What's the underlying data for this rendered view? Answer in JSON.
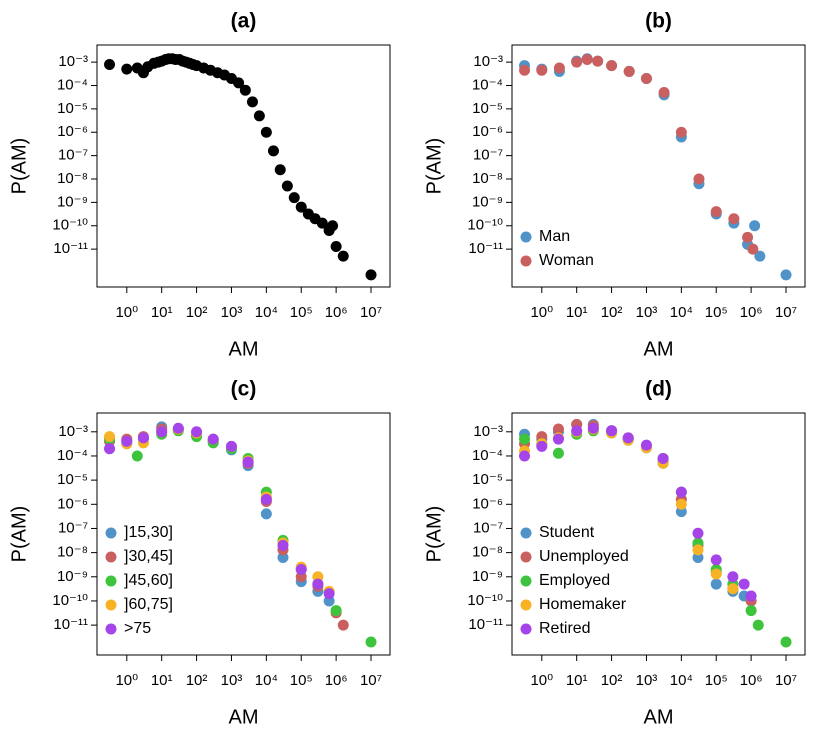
{
  "chart_data": [
    {
      "type": "scatter",
      "title": "(a)",
      "x_label": "AM",
      "y_label": "P(AM)",
      "log_x": true,
      "log_y": true,
      "xlim": [
        0.14,
        35000000
      ],
      "ylim": [
        2.4e-13,
        0.0054
      ],
      "xticks": [
        {
          "value": 1,
          "label": "10⁰"
        },
        {
          "value": 10,
          "label": "10¹"
        },
        {
          "value": 100,
          "label": "10²"
        },
        {
          "value": 1000,
          "label": "10³"
        },
        {
          "value": 10000,
          "label": "10⁴"
        },
        {
          "value": 100000,
          "label": "10⁵"
        },
        {
          "value": 1000000,
          "label": "10⁶"
        },
        {
          "value": 10000000,
          "label": "10⁷"
        }
      ],
      "yticks": [
        {
          "value": 0.001,
          "label": "10⁻³"
        },
        {
          "value": 0.0001,
          "label": "10⁻⁴"
        },
        {
          "value": 1e-05,
          "label": "10⁻⁵"
        },
        {
          "value": 1e-06,
          "label": "10⁻⁶"
        },
        {
          "value": 1e-07,
          "label": "10⁻⁷"
        },
        {
          "value": 1e-08,
          "label": "10⁻⁸"
        },
        {
          "value": 1e-09,
          "label": "10⁻⁹"
        },
        {
          "value": 1e-10,
          "label": "10⁻¹⁰"
        },
        {
          "value": 1e-11,
          "label": "10⁻¹¹"
        }
      ],
      "series": [
        {
          "color": "#000000",
          "x": [
            0.32,
            1,
            2,
            3,
            4,
            6,
            8,
            10,
            13,
            16,
            20,
            25,
            32,
            40,
            50,
            63,
            79,
            100,
            160,
            250,
            400,
            630,
            1000,
            1600,
            2500,
            4000,
            6300,
            10000,
            16000,
            25000,
            40000,
            63000,
            100000,
            160000,
            250000,
            400000,
            630000,
            790000,
            1000000,
            1600000,
            10000000
          ],
          "values": [
            0.00079,
            0.0005,
            0.00056,
            0.00035,
            0.00063,
            0.00089,
            0.001,
            0.0011,
            0.0013,
            0.0014,
            0.0014,
            0.0013,
            0.0013,
            0.0011,
            0.001,
            0.00089,
            0.00079,
            0.00071,
            0.00056,
            0.00045,
            0.00035,
            0.00028,
            0.0002,
            0.00013,
            6.3e-05,
            2e-05,
            5e-06,
            1e-06,
            1.6e-07,
            2.5e-08,
            5e-09,
            1.6e-09,
            6.3e-10,
            3.2e-10,
            2e-10,
            1.3e-10,
            6.3e-11,
            1e-10,
            1.3e-11,
            5e-12,
            7.9e-13
          ]
        }
      ]
    },
    {
      "type": "scatter",
      "title": "(b)",
      "x_label": "AM",
      "y_label": "P(AM)",
      "log_x": true,
      "log_y": true,
      "legend": "bottom left",
      "xlim": [
        0.14,
        35000000
      ],
      "ylim": [
        2.4e-13,
        0.0054
      ],
      "xticks": [
        {
          "value": 1,
          "label": "10⁰"
        },
        {
          "value": 10,
          "label": "10¹"
        },
        {
          "value": 100,
          "label": "10²"
        },
        {
          "value": 1000,
          "label": "10³"
        },
        {
          "value": 10000,
          "label": "10⁴"
        },
        {
          "value": 100000,
          "label": "10⁵"
        },
        {
          "value": 1000000,
          "label": "10⁶"
        },
        {
          "value": 10000000,
          "label": "10⁷"
        }
      ],
      "yticks": [
        {
          "value": 0.001,
          "label": "10⁻³"
        },
        {
          "value": 0.0001,
          "label": "10⁻⁴"
        },
        {
          "value": 1e-05,
          "label": "10⁻⁵"
        },
        {
          "value": 1e-06,
          "label": "10⁻⁶"
        },
        {
          "value": 1e-07,
          "label": "10⁻⁷"
        },
        {
          "value": 1e-08,
          "label": "10⁻⁸"
        },
        {
          "value": 1e-09,
          "label": "10⁻⁹"
        },
        {
          "value": 1e-10,
          "label": "10⁻¹⁰"
        },
        {
          "value": 1e-11,
          "label": "10⁻¹¹"
        }
      ],
      "series": [
        {
          "name": "Man",
          "color": "#4f93c9",
          "x": [
            0.32,
            1,
            3.2,
            10,
            20,
            40,
            100,
            320,
            1000,
            3200,
            10000,
            32000,
            100000,
            320000,
            790000,
            1260000,
            1780000,
            10000000
          ],
          "values": [
            0.00071,
            0.0005,
            0.0004,
            0.0011,
            0.0014,
            0.0011,
            0.00071,
            0.0004,
            0.0002,
            4e-05,
            6.3e-07,
            6.3e-09,
            3.2e-10,
            1.3e-10,
            1.6e-11,
            1e-10,
            5e-12,
            7.9e-13
          ]
        },
        {
          "name": "Woman",
          "color": "#c9605f",
          "x": [
            0.32,
            1,
            3.2,
            10,
            20,
            40,
            100,
            320,
            1000,
            3200,
            10000,
            32000,
            100000,
            320000,
            790000,
            1120000
          ],
          "values": [
            0.00045,
            0.00045,
            0.00056,
            0.001,
            0.0013,
            0.0011,
            0.00071,
            0.0004,
            0.0002,
            5e-05,
            1e-06,
            1e-08,
            4e-10,
            2e-10,
            3.2e-11,
            1e-11
          ]
        }
      ]
    },
    {
      "type": "scatter",
      "title": "(c)",
      "x_label": "AM",
      "y_label": "P(AM)",
      "log_x": true,
      "log_y": true,
      "legend": "bottom left",
      "xlim": [
        0.14,
        35000000
      ],
      "ylim": [
        5.8e-13,
        0.006
      ],
      "xticks": [
        {
          "value": 1,
          "label": "10⁰"
        },
        {
          "value": 10,
          "label": "10¹"
        },
        {
          "value": 100,
          "label": "10²"
        },
        {
          "value": 1000,
          "label": "10³"
        },
        {
          "value": 10000,
          "label": "10⁴"
        },
        {
          "value": 100000,
          "label": "10⁵"
        },
        {
          "value": 1000000,
          "label": "10⁶"
        },
        {
          "value": 10000000,
          "label": "10⁷"
        }
      ],
      "yticks": [
        {
          "value": 0.001,
          "label": "10⁻³"
        },
        {
          "value": 0.0001,
          "label": "10⁻⁴"
        },
        {
          "value": 1e-05,
          "label": "10⁻⁵"
        },
        {
          "value": 1e-06,
          "label": "10⁻⁶"
        },
        {
          "value": 1e-07,
          "label": "10⁻⁷"
        },
        {
          "value": 1e-08,
          "label": "10⁻⁸"
        },
        {
          "value": 1e-09,
          "label": "10⁻⁹"
        },
        {
          "value": 1e-10,
          "label": "10⁻¹⁰"
        },
        {
          "value": 1e-11,
          "label": "10⁻¹¹"
        }
      ],
      "series": [
        {
          "name": "]15,30]",
          "color": "#4f93c9",
          "x": [
            0.32,
            1,
            3,
            10,
            30,
            100,
            300,
            1000,
            3000,
            10000,
            30000,
            100000,
            300000,
            630000
          ],
          "values": [
            0.0005,
            0.0004,
            0.0005,
            0.0016,
            0.0013,
            0.00071,
            0.0004,
            0.00018,
            4e-05,
            4e-07,
            6.3e-09,
            6.3e-10,
            2.5e-10,
            1e-10
          ]
        },
        {
          "name": "]30,45]",
          "color": "#c9605f",
          "x": [
            0.32,
            1,
            3,
            10,
            30,
            100,
            300,
            1000,
            3000,
            10000,
            30000,
            100000,
            300000,
            1000000,
            1600000
          ],
          "values": [
            0.0004,
            0.0005,
            0.00063,
            0.0013,
            0.0013,
            0.00079,
            0.00045,
            0.00022,
            5e-05,
            1.3e-06,
            1.3e-08,
            1e-09,
            4e-10,
            3.2e-11,
            1e-11
          ]
        },
        {
          "name": "]45,60]",
          "color": "#3ec43c",
          "x": [
            0.32,
            1,
            2,
            10,
            30,
            100,
            300,
            1000,
            3000,
            10000,
            30000,
            100000,
            300000,
            1000000,
            10000000
          ],
          "values": [
            0.0005,
            0.00032,
            0.0001,
            0.00079,
            0.0011,
            0.00063,
            0.00035,
            0.0002,
            7.9e-05,
            3.2e-06,
            3.2e-08,
            2e-09,
            5e-10,
            4e-11,
            2e-12
          ]
        },
        {
          "name": "]60,75]",
          "color": "#f7b325",
          "x": [
            0.32,
            1,
            3,
            10,
            30,
            100,
            300,
            1000,
            3000,
            10000,
            30000,
            100000,
            300000,
            630000
          ],
          "values": [
            0.00063,
            0.00032,
            0.00035,
            0.001,
            0.0013,
            0.00089,
            0.0005,
            0.00025,
            6.3e-05,
            2e-06,
            2.5e-08,
            2.5e-09,
            1e-09,
            2.5e-10
          ]
        },
        {
          "name": ">75",
          "color": "#a544e8",
          "x": [
            0.32,
            1,
            3,
            10,
            30,
            100,
            300,
            1000,
            3000,
            10000,
            30000,
            100000,
            300000,
            630000
          ],
          "values": [
            0.0002,
            0.0004,
            0.00056,
            0.001,
            0.0014,
            0.001,
            0.0005,
            0.00025,
            5.6e-05,
            1.6e-06,
            2e-08,
            2e-09,
            5e-10,
            2e-10
          ]
        }
      ]
    },
    {
      "type": "scatter",
      "title": "(d)",
      "x_label": "AM",
      "y_label": "P(AM)",
      "log_x": true,
      "log_y": true,
      "legend": "bottom left",
      "xlim": [
        0.14,
        35000000
      ],
      "ylim": [
        5.8e-13,
        0.006
      ],
      "xticks": [
        {
          "value": 1,
          "label": "10⁰"
        },
        {
          "value": 10,
          "label": "10¹"
        },
        {
          "value": 100,
          "label": "10²"
        },
        {
          "value": 1000,
          "label": "10³"
        },
        {
          "value": 10000,
          "label": "10⁴"
        },
        {
          "value": 100000,
          "label": "10⁵"
        },
        {
          "value": 1000000,
          "label": "10⁶"
        },
        {
          "value": 10000000,
          "label": "10⁷"
        }
      ],
      "yticks": [
        {
          "value": 0.001,
          "label": "10⁻³"
        },
        {
          "value": 0.0001,
          "label": "10⁻⁴"
        },
        {
          "value": 1e-05,
          "label": "10⁻⁵"
        },
        {
          "value": 1e-06,
          "label": "10⁻⁶"
        },
        {
          "value": 1e-07,
          "label": "10⁻⁷"
        },
        {
          "value": 1e-08,
          "label": "10⁻⁸"
        },
        {
          "value": 1e-09,
          "label": "10⁻⁹"
        },
        {
          "value": 1e-10,
          "label": "10⁻¹⁰"
        },
        {
          "value": 1e-11,
          "label": "10⁻¹¹"
        }
      ],
      "series": [
        {
          "name": "Student",
          "color": "#4f93c9",
          "x": [
            0.32,
            1,
            3,
            10,
            30,
            100,
            300,
            1000,
            3000,
            10000,
            30000,
            100000,
            300000,
            630000
          ],
          "values": [
            0.00079,
            0.0005,
            0.001,
            0.002,
            0.002,
            0.0011,
            0.0005,
            0.00022,
            5e-05,
            5e-07,
            6.3e-09,
            5e-10,
            2.5e-10,
            1.6e-10
          ]
        },
        {
          "name": "Unemployed",
          "color": "#c9605f",
          "x": [
            0.32,
            1,
            3,
            10,
            30,
            100,
            300,
            1000,
            3000,
            10000,
            30000,
            100000,
            300000,
            1000000
          ],
          "values": [
            0.00032,
            0.00063,
            0.0013,
            0.002,
            0.0018,
            0.0011,
            0.00056,
            0.00025,
            6.3e-05,
            1.6e-06,
            2e-08,
            1.6e-09,
            3.2e-10,
            1e-10
          ]
        },
        {
          "name": "Employed",
          "color": "#3ec43c",
          "x": [
            0.32,
            1,
            3,
            10,
            30,
            100,
            300,
            1000,
            3000,
            10000,
            30000,
            100000,
            300000,
            1000000,
            1600000,
            10000000
          ],
          "values": [
            0.0005,
            0.00032,
            0.00013,
            0.00079,
            0.0011,
            0.00089,
            0.00045,
            0.00022,
            7.9e-05,
            3.2e-06,
            2.5e-08,
            2e-09,
            5e-10,
            4e-11,
            1e-11,
            2e-12
          ]
        },
        {
          "name": "Homemaker",
          "color": "#f7b325",
          "x": [
            0.32,
            1,
            3,
            10,
            30,
            100,
            300,
            1000,
            3000,
            10000,
            30000,
            100000,
            300000
          ],
          "values": [
            0.00016,
            0.00032,
            0.00056,
            0.001,
            0.0013,
            0.00089,
            0.00045,
            0.00022,
            5e-05,
            1e-06,
            1.3e-08,
            1.3e-09,
            3.2e-10
          ]
        },
        {
          "name": "Retired",
          "color": "#a544e8",
          "x": [
            0.32,
            1,
            3,
            10,
            30,
            100,
            300,
            1000,
            3000,
            10000,
            30000,
            100000,
            300000,
            630000,
            1000000
          ],
          "values": [
            0.0001,
            0.00025,
            0.0005,
            0.0011,
            0.0014,
            0.0011,
            0.00056,
            0.00028,
            7.9e-05,
            3.2e-06,
            6.3e-08,
            5e-09,
            1e-09,
            5e-10,
            1.6e-10
          ]
        }
      ]
    }
  ]
}
